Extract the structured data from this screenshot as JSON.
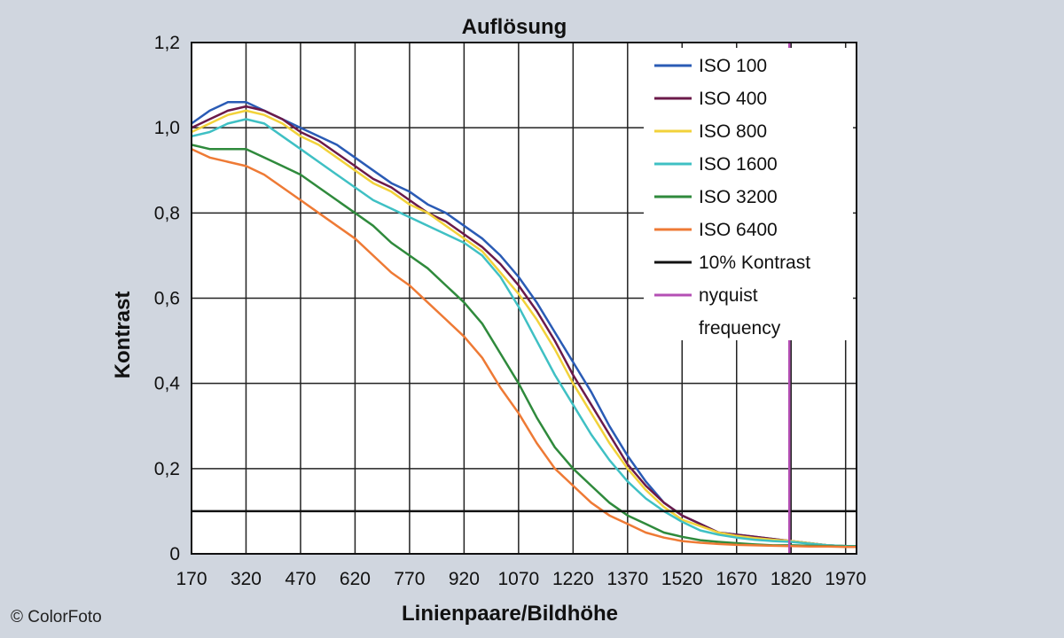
{
  "chart_data": {
    "type": "line",
    "title": "Auflösung",
    "xlabel": "Linienpaare/Bildhöhe",
    "ylabel": "Kontrast",
    "xlim": [
      170,
      2000
    ],
    "ylim": [
      0,
      1.2
    ],
    "x_ticks": [
      170,
      320,
      470,
      620,
      770,
      920,
      1070,
      1220,
      1370,
      1520,
      1670,
      1820,
      1970
    ],
    "y_ticks": [
      {
        "v": 0,
        "label": "0"
      },
      {
        "v": 0.2,
        "label": "0,2"
      },
      {
        "v": 0.4,
        "label": "0,4"
      },
      {
        "v": 0.6,
        "label": "0,6"
      },
      {
        "v": 0.8,
        "label": "0,8"
      },
      {
        "v": 1.0,
        "label": "1,0"
      },
      {
        "v": 1.2,
        "label": "1,2"
      }
    ],
    "grid": true,
    "legend_position": "top-right",
    "series": [
      {
        "name": "ISO 100",
        "color": "#2a5bb5",
        "points": [
          [
            170,
            1.01
          ],
          [
            220,
            1.04
          ],
          [
            270,
            1.06
          ],
          [
            320,
            1.06
          ],
          [
            370,
            1.04
          ],
          [
            420,
            1.02
          ],
          [
            470,
            1.0
          ],
          [
            520,
            0.98
          ],
          [
            570,
            0.96
          ],
          [
            620,
            0.93
          ],
          [
            670,
            0.9
          ],
          [
            720,
            0.87
          ],
          [
            770,
            0.85
          ],
          [
            820,
            0.82
          ],
          [
            870,
            0.8
          ],
          [
            920,
            0.77
          ],
          [
            970,
            0.74
          ],
          [
            1020,
            0.7
          ],
          [
            1070,
            0.65
          ],
          [
            1120,
            0.59
          ],
          [
            1170,
            0.52
          ],
          [
            1220,
            0.45
          ],
          [
            1270,
            0.38
          ],
          [
            1320,
            0.3
          ],
          [
            1370,
            0.23
          ],
          [
            1420,
            0.17
          ],
          [
            1470,
            0.12
          ],
          [
            1520,
            0.09
          ],
          [
            1570,
            0.07
          ],
          [
            1620,
            0.05
          ],
          [
            1670,
            0.045
          ],
          [
            1720,
            0.04
          ],
          [
            1770,
            0.035
          ],
          [
            1820,
            0.03
          ],
          [
            1870,
            0.025
          ],
          [
            1920,
            0.02
          ],
          [
            1970,
            0.018
          ],
          [
            2000,
            0.018
          ]
        ]
      },
      {
        "name": "ISO 400",
        "color": "#6b1a4a",
        "points": [
          [
            170,
            1.0
          ],
          [
            220,
            1.02
          ],
          [
            270,
            1.04
          ],
          [
            320,
            1.05
          ],
          [
            370,
            1.04
          ],
          [
            420,
            1.02
          ],
          [
            470,
            0.99
          ],
          [
            520,
            0.97
          ],
          [
            570,
            0.94
          ],
          [
            620,
            0.91
          ],
          [
            670,
            0.88
          ],
          [
            720,
            0.86
          ],
          [
            770,
            0.83
          ],
          [
            820,
            0.8
          ],
          [
            870,
            0.78
          ],
          [
            920,
            0.75
          ],
          [
            970,
            0.72
          ],
          [
            1020,
            0.68
          ],
          [
            1070,
            0.63
          ],
          [
            1120,
            0.57
          ],
          [
            1170,
            0.5
          ],
          [
            1220,
            0.42
          ],
          [
            1270,
            0.35
          ],
          [
            1320,
            0.28
          ],
          [
            1370,
            0.21
          ],
          [
            1420,
            0.16
          ],
          [
            1470,
            0.12
          ],
          [
            1520,
            0.09
          ],
          [
            1570,
            0.07
          ],
          [
            1620,
            0.05
          ],
          [
            1670,
            0.045
          ],
          [
            1720,
            0.04
          ],
          [
            1770,
            0.035
          ],
          [
            1820,
            0.03
          ],
          [
            1870,
            0.025
          ],
          [
            1920,
            0.02
          ],
          [
            1970,
            0.018
          ],
          [
            2000,
            0.018
          ]
        ]
      },
      {
        "name": "ISO 800",
        "color": "#f2d23a",
        "points": [
          [
            170,
            0.99
          ],
          [
            220,
            1.01
          ],
          [
            270,
            1.03
          ],
          [
            320,
            1.04
          ],
          [
            370,
            1.03
          ],
          [
            420,
            1.01
          ],
          [
            470,
            0.98
          ],
          [
            520,
            0.96
          ],
          [
            570,
            0.93
          ],
          [
            620,
            0.9
          ],
          [
            670,
            0.87
          ],
          [
            720,
            0.85
          ],
          [
            770,
            0.82
          ],
          [
            820,
            0.8
          ],
          [
            870,
            0.77
          ],
          [
            920,
            0.74
          ],
          [
            970,
            0.71
          ],
          [
            1020,
            0.66
          ],
          [
            1070,
            0.61
          ],
          [
            1120,
            0.55
          ],
          [
            1170,
            0.48
          ],
          [
            1220,
            0.4
          ],
          [
            1270,
            0.33
          ],
          [
            1320,
            0.26
          ],
          [
            1370,
            0.2
          ],
          [
            1420,
            0.15
          ],
          [
            1470,
            0.11
          ],
          [
            1520,
            0.08
          ],
          [
            1570,
            0.065
          ],
          [
            1620,
            0.05
          ],
          [
            1670,
            0.042
          ],
          [
            1720,
            0.037
          ],
          [
            1770,
            0.033
          ],
          [
            1820,
            0.03
          ],
          [
            1870,
            0.025
          ],
          [
            1920,
            0.02
          ],
          [
            1970,
            0.018
          ],
          [
            2000,
            0.018
          ]
        ]
      },
      {
        "name": "ISO 1600",
        "color": "#3fc0c4",
        "points": [
          [
            170,
            0.98
          ],
          [
            220,
            0.99
          ],
          [
            270,
            1.01
          ],
          [
            320,
            1.02
          ],
          [
            370,
            1.01
          ],
          [
            420,
            0.98
          ],
          [
            470,
            0.95
          ],
          [
            520,
            0.92
          ],
          [
            570,
            0.89
          ],
          [
            620,
            0.86
          ],
          [
            670,
            0.83
          ],
          [
            720,
            0.81
          ],
          [
            770,
            0.79
          ],
          [
            820,
            0.77
          ],
          [
            870,
            0.75
          ],
          [
            920,
            0.73
          ],
          [
            970,
            0.7
          ],
          [
            1020,
            0.65
          ],
          [
            1070,
            0.58
          ],
          [
            1120,
            0.5
          ],
          [
            1170,
            0.42
          ],
          [
            1220,
            0.35
          ],
          [
            1270,
            0.28
          ],
          [
            1320,
            0.22
          ],
          [
            1370,
            0.17
          ],
          [
            1420,
            0.13
          ],
          [
            1470,
            0.1
          ],
          [
            1520,
            0.075
          ],
          [
            1570,
            0.055
          ],
          [
            1620,
            0.045
          ],
          [
            1670,
            0.038
          ],
          [
            1720,
            0.033
          ],
          [
            1770,
            0.03
          ],
          [
            1820,
            0.028
          ],
          [
            1870,
            0.024
          ],
          [
            1920,
            0.02
          ],
          [
            1970,
            0.018
          ],
          [
            2000,
            0.018
          ]
        ]
      },
      {
        "name": "ISO 3200",
        "color": "#2f8a3c",
        "points": [
          [
            170,
            0.96
          ],
          [
            220,
            0.95
          ],
          [
            270,
            0.95
          ],
          [
            320,
            0.95
          ],
          [
            370,
            0.93
          ],
          [
            420,
            0.91
          ],
          [
            470,
            0.89
          ],
          [
            520,
            0.86
          ],
          [
            570,
            0.83
          ],
          [
            620,
            0.8
          ],
          [
            670,
            0.77
          ],
          [
            720,
            0.73
          ],
          [
            770,
            0.7
          ],
          [
            820,
            0.67
          ],
          [
            870,
            0.63
          ],
          [
            920,
            0.59
          ],
          [
            970,
            0.54
          ],
          [
            1020,
            0.47
          ],
          [
            1070,
            0.4
          ],
          [
            1120,
            0.32
          ],
          [
            1170,
            0.25
          ],
          [
            1220,
            0.2
          ],
          [
            1270,
            0.16
          ],
          [
            1320,
            0.12
          ],
          [
            1370,
            0.09
          ],
          [
            1420,
            0.07
          ],
          [
            1470,
            0.05
          ],
          [
            1520,
            0.04
          ],
          [
            1570,
            0.032
          ],
          [
            1620,
            0.028
          ],
          [
            1670,
            0.025
          ],
          [
            1720,
            0.022
          ],
          [
            1770,
            0.02
          ],
          [
            1820,
            0.02
          ],
          [
            1870,
            0.019
          ],
          [
            1920,
            0.018
          ],
          [
            1970,
            0.017
          ],
          [
            2000,
            0.017
          ]
        ]
      },
      {
        "name": "ISO 6400",
        "color": "#ee7a35",
        "points": [
          [
            170,
            0.95
          ],
          [
            220,
            0.93
          ],
          [
            270,
            0.92
          ],
          [
            320,
            0.91
          ],
          [
            370,
            0.89
          ],
          [
            420,
            0.86
          ],
          [
            470,
            0.83
          ],
          [
            520,
            0.8
          ],
          [
            570,
            0.77
          ],
          [
            620,
            0.74
          ],
          [
            670,
            0.7
          ],
          [
            720,
            0.66
          ],
          [
            770,
            0.63
          ],
          [
            820,
            0.59
          ],
          [
            870,
            0.55
          ],
          [
            920,
            0.51
          ],
          [
            970,
            0.46
          ],
          [
            1020,
            0.39
          ],
          [
            1070,
            0.33
          ],
          [
            1120,
            0.26
          ],
          [
            1170,
            0.2
          ],
          [
            1220,
            0.16
          ],
          [
            1270,
            0.12
          ],
          [
            1320,
            0.09
          ],
          [
            1370,
            0.07
          ],
          [
            1420,
            0.05
          ],
          [
            1470,
            0.038
          ],
          [
            1520,
            0.03
          ],
          [
            1570,
            0.026
          ],
          [
            1620,
            0.023
          ],
          [
            1670,
            0.021
          ],
          [
            1720,
            0.02
          ],
          [
            1770,
            0.019
          ],
          [
            1820,
            0.018
          ],
          [
            1870,
            0.017
          ],
          [
            1920,
            0.017
          ],
          [
            1970,
            0.016
          ],
          [
            2000,
            0.016
          ]
        ]
      },
      {
        "name": "10% Kontrast",
        "color": "#111111",
        "points": [
          [
            170,
            0.1
          ],
          [
            2000,
            0.1
          ]
        ]
      },
      {
        "name": "nyquist frequency",
        "color": "#b44fb4",
        "points": [
          [
            1815,
            0
          ],
          [
            1815,
            1.2
          ]
        ]
      }
    ],
    "legend": [
      {
        "label": "ISO 100",
        "color": "#2a5bb5"
      },
      {
        "label": "ISO 400",
        "color": "#6b1a4a"
      },
      {
        "label": "ISO 800",
        "color": "#f2d23a"
      },
      {
        "label": "ISO 1600",
        "color": "#3fc0c4"
      },
      {
        "label": "ISO 3200",
        "color": "#2f8a3c"
      },
      {
        "label": "ISO 6400",
        "color": "#ee7a35"
      },
      {
        "label": "10% Kontrast",
        "color": "#111111"
      },
      {
        "label": "nyquist",
        "label2": "frequency",
        "color": "#b44fb4"
      }
    ]
  },
  "credit": "© ColorFoto"
}
